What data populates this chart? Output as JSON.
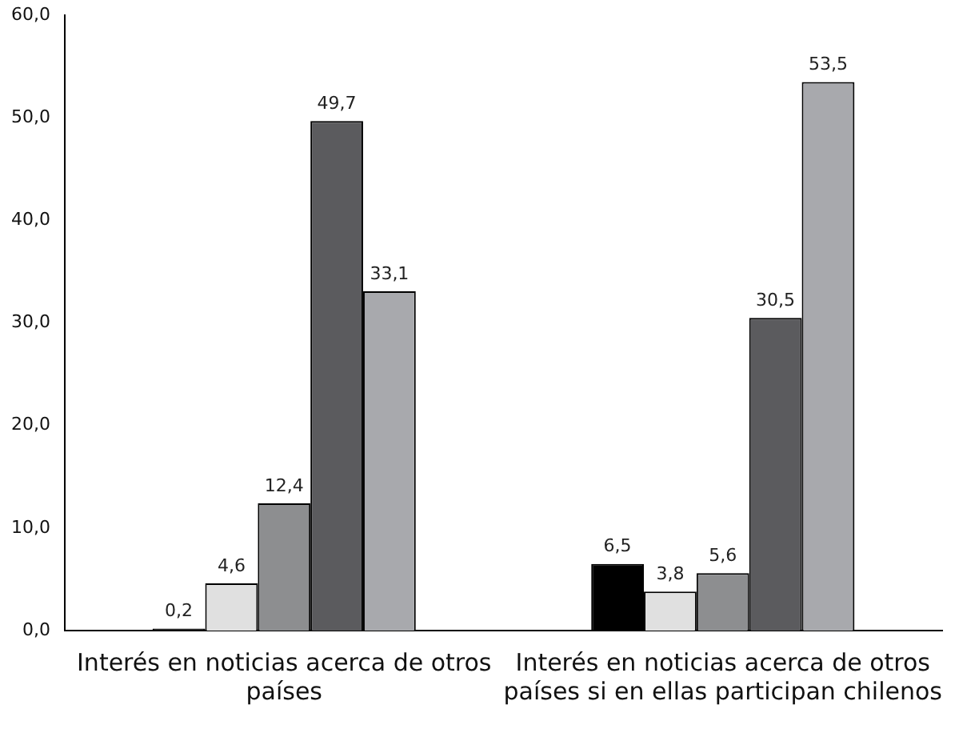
{
  "chart_data": {
    "type": "bar",
    "categories": [
      "Interés en noticias acerca de otros países",
      "Interés en noticias acerca de otros países si en ellas participan chilenos"
    ],
    "series": [
      {
        "color": "#000000",
        "values": [
          0.2,
          6.5
        ],
        "value_labels": [
          "0,2",
          "6,5"
        ]
      },
      {
        "color": "#e0e0e0",
        "values": [
          4.6,
          3.8
        ],
        "value_labels": [
          "4,6",
          "3,8"
        ]
      },
      {
        "color": "#8d8e90",
        "values": [
          12.4,
          5.6
        ],
        "value_labels": [
          "12,4",
          "5,6"
        ]
      },
      {
        "color": "#5b5b5e",
        "values": [
          49.7,
          30.5
        ],
        "value_labels": [
          "49,7",
          "30,5"
        ]
      },
      {
        "color": "#a8a9ad",
        "values": [
          33.1,
          53.5
        ],
        "value_labels": [
          "33,1",
          "53,5"
        ]
      }
    ],
    "ylim": [
      0,
      60
    ],
    "yticks": [
      {
        "value": 0,
        "label": "0,0"
      },
      {
        "value": 10,
        "label": "10,0"
      },
      {
        "value": 20,
        "label": "20,0"
      },
      {
        "value": 30,
        "label": "30,0"
      },
      {
        "value": 40,
        "label": "40,0"
      },
      {
        "value": 50,
        "label": "50,0"
      },
      {
        "value": 60,
        "label": "60,0"
      }
    ],
    "grid": false,
    "legend": false
  }
}
